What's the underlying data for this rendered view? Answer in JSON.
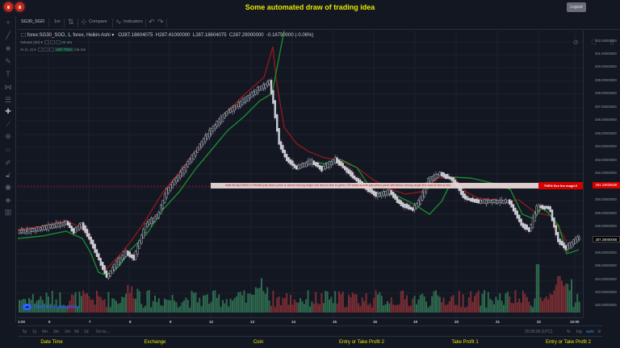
{
  "header": {
    "title": "Some automated draw of trading idea",
    "logout_label": "Logout",
    "window_dots": [
      "red-dot",
      "red-dot"
    ]
  },
  "toolbar": {
    "symbol": "SG30_SGD",
    "interval": "1m",
    "compare_label": "Compare",
    "indicators_label": "Indicators",
    "undo_icon": "undo-icon",
    "redo_icon": "redo-icon",
    "right_icons": [
      "settings-icon",
      "fullscreen-icon",
      "camera-icon"
    ]
  },
  "left_tools": [
    "crosshair-icon",
    "trendline-icon",
    "pitchfork-icon",
    "brush-icon",
    "text-icon",
    "pattern-icon",
    "measure-icon",
    "arrow-icon",
    "ruler-icon",
    "zoom-icon",
    "magnet-icon",
    "lock-drawing-icon",
    "lock-icon",
    "eye-icon",
    "layers-icon",
    "trash-icon"
  ],
  "legend": {
    "series": "forex:SG30_SGD, 1, forex, Heikin Ashi",
    "open": "O287.18604075",
    "high": "H287.41000000",
    "low": "L287.18604075",
    "close": "C287.29000000",
    "change": "-0.16750000 (-0.06%)",
    "volume_label": "Volume (20)",
    "volume_value": "89",
    "volume_na": "n/a",
    "ai_label": "AI (1, 1)",
    "ai_value": "287.7594",
    "ai_na": "n/a  n/a"
  },
  "annotation": {
    "text": "Wait till flip ENDD !!   DRAW just when  price is above strong angle line and AI line is green        OR        draw shorts just when price still below strong angle line and AI line is red",
    "magic": "THEN See the magic!!",
    "price_tag": "291.10625540"
  },
  "price_axis": {
    "labels": [
      "302.00000000",
      "301.00000000",
      "300.00000000",
      "299.00000000",
      "298.00000000",
      "297.00000000",
      "296.00000000",
      "295.00000000",
      "294.00000000",
      "293.00000000",
      "292.00000000",
      "291.00000000",
      "290.00000000",
      "289.00000000",
      "288.00000000",
      "287.00000000",
      "286.00000000",
      "285.00000000",
      "284.00000000",
      "283.00000000",
      "282.00000000"
    ],
    "current_price": "287.29000000"
  },
  "time_axis": {
    "labels": [
      "1:00",
      "6",
      "7",
      "8",
      "9",
      "12",
      "13",
      "14",
      "15",
      "16",
      "19",
      "20",
      "21",
      "22",
      "10:00"
    ]
  },
  "range_bar": {
    "ranges": [
      "5y",
      "1y",
      "6m",
      "3m",
      "1m",
      "5d",
      "1d"
    ],
    "goto": "Go to...",
    "time": "20:25:06 (UTC)",
    "percent": "%",
    "log": "log",
    "auto": "auto"
  },
  "watermark": "Chart by TradingView",
  "footer": {
    "labels": [
      "Date Time",
      "Exchange",
      "Coin",
      "Entry or Take Profit 2",
      "Take Profit 1",
      "Entry or Take Profit 2"
    ]
  },
  "colors": {
    "background": "#131722",
    "title_yellow": "#e6e600",
    "up": "#26a69a",
    "down": "#ef5350",
    "annotation_red": "#d50000"
  }
}
